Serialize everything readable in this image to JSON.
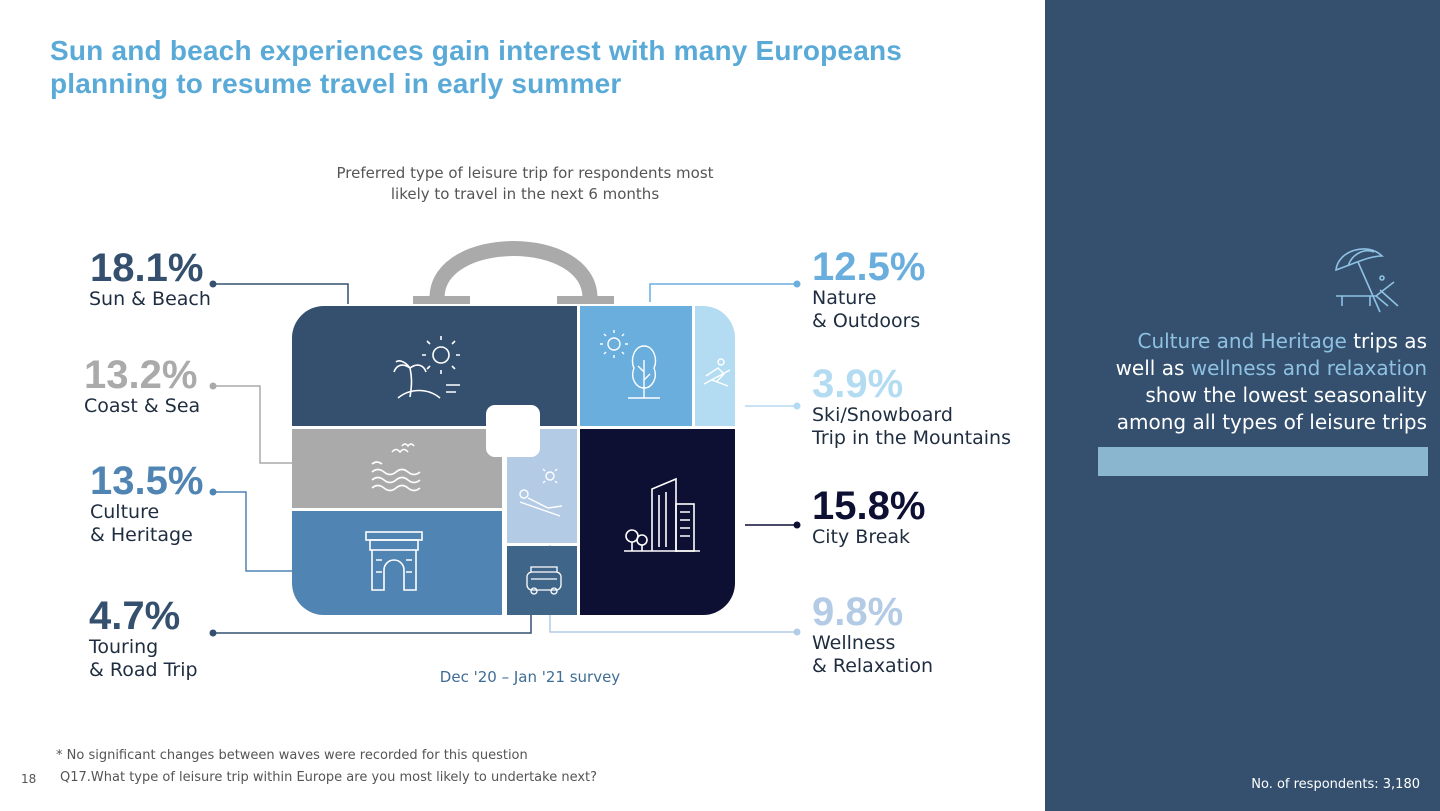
{
  "title": "Sun and beach experiences gain interest with many Europeans planning to resume travel in early summer",
  "chart_data": {
    "type": "pie",
    "title": "Preferred  type of leisure trip for respondents most likely to travel in the next 6 months",
    "subtitle": "Dec '20 – Jan '21 survey",
    "categories": [
      "Sun & Beach",
      "Coast & Sea",
      "Culture & Heritage",
      "Touring & Road Trip",
      "Nature & Outdoors",
      "Ski/Snowboard Trip in the Mountains",
      "City Break",
      "Wellness & Relaxation"
    ],
    "values": [
      18.1,
      13.2,
      13.5,
      4.7,
      12.5,
      3.9,
      15.8,
      9.8
    ],
    "unit": "%",
    "colors": [
      "#34506e",
      "#aaaaaa",
      "#4f84b3",
      "#34506e",
      "#6aaede",
      "#b3dcf2",
      "#0d0f33",
      "#b4cbe6"
    ],
    "items": [
      {
        "key": "sun",
        "pct": "18.1%",
        "label": "Sun & Beach",
        "color": "#34506e",
        "icon": "palm-sun-icon"
      },
      {
        "key": "coast",
        "pct": "13.2%",
        "label": "Coast & Sea",
        "color": "#aaaaaa",
        "icon": "waves-birds-icon"
      },
      {
        "key": "culture",
        "pct": "13.5%",
        "label": "Culture\n& Heritage",
        "color": "#4f84b3",
        "icon": "arch-monument-icon"
      },
      {
        "key": "touring",
        "pct": "4.7%",
        "label": "Touring\n& Road Trip",
        "color": "#34506e",
        "icon": "van-icon"
      },
      {
        "key": "nature",
        "pct": "12.5%",
        "label": "Nature\n& Outdoors",
        "color": "#6aaede",
        "icon": "tree-sun-icon"
      },
      {
        "key": "ski",
        "pct": "3.9%",
        "label": "Ski/Snowboard\nTrip in the Mountains",
        "color": "#b3dcf2",
        "icon": "skier-icon"
      },
      {
        "key": "city",
        "pct": "15.8%",
        "label": "City Break",
        "color": "#0d0f33",
        "icon": "city-building-icon"
      },
      {
        "key": "wellness",
        "pct": "9.8%",
        "label": "Wellness\n& Relaxation",
        "color": "#b4cbe6",
        "icon": "sunbather-icon"
      }
    ]
  },
  "panel": {
    "text_hl1": "Culture and Heritage",
    "text_1": " trips as well as ",
    "text_hl2": "wellness and relaxation",
    "text_2": " show the lowest seasonality among all types of leisure trips",
    "icon": "beach-umbrella-icon",
    "respondents": "No. of respondents: 3,180",
    "bg_color": "#34506e"
  },
  "footnote": "* No significant changes between waves were recorded for this question",
  "question": "Q17.What type of leisure trip within Europe are you most likely to undertake next?",
  "page_number": "18"
}
